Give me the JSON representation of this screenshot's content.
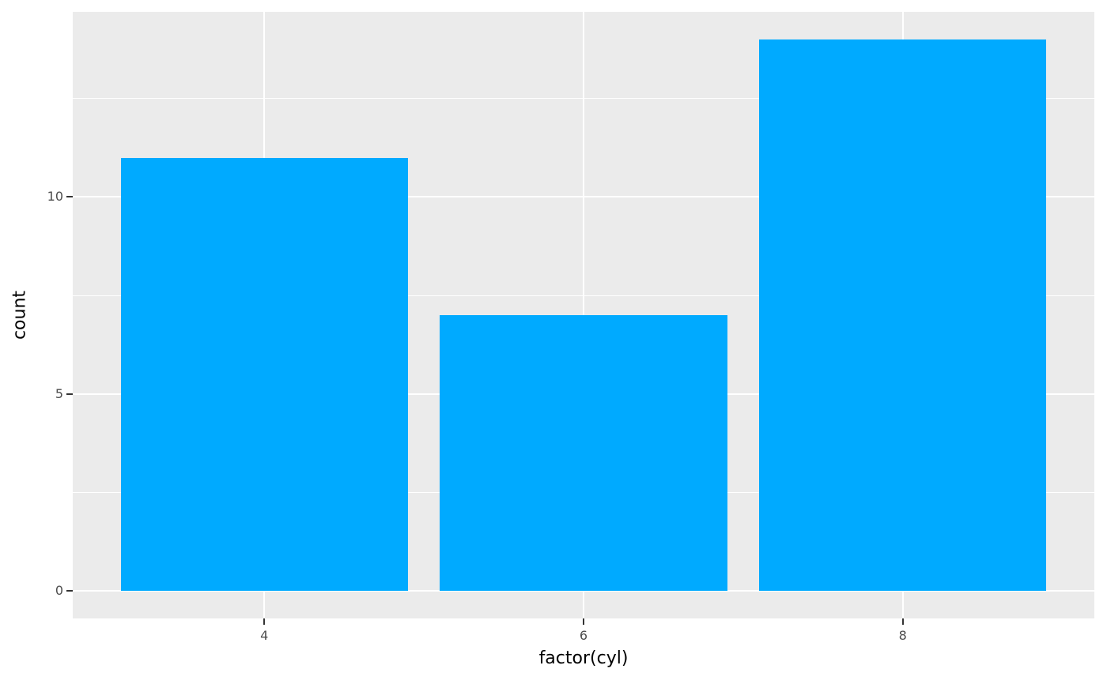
{
  "chart_data": {
    "type": "bar",
    "categories": [
      "4",
      "6",
      "8"
    ],
    "values": [
      11,
      7,
      14
    ],
    "title": "",
    "xlabel": "factor(cyl)",
    "ylabel": "count",
    "ylim": [
      -0.7,
      14.7
    ],
    "y_major_ticks": [
      0,
      5,
      10
    ],
    "y_minor_ticks": [
      2.5,
      7.5,
      12.5
    ],
    "x_tick_labels": [
      "4",
      "6",
      "8"
    ],
    "y_tick_labels": [
      "0",
      "5",
      "10"
    ],
    "bar_width_fraction": 0.9,
    "discrete_expansion": 0.6,
    "grid": "on",
    "legend": "none",
    "colors": {
      "bar_fill": "#00AAFF",
      "panel_background": "#EBEBEB",
      "grid_major": "#FFFFFF",
      "grid_minor": "#FFFFFF",
      "tick_label": "#4D4D4D",
      "tick_mark": "#333333",
      "axis_title": "#000000",
      "figure_background": "#FFFFFF"
    }
  }
}
